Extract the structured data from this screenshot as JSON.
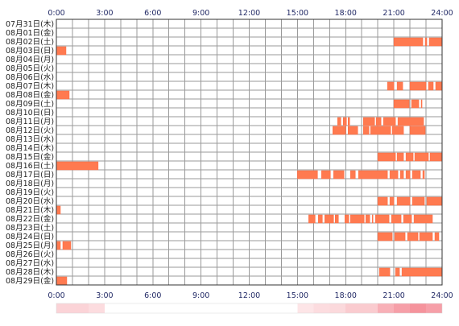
{
  "chart_data": {
    "type": "heatmap",
    "title": "",
    "xlabel": "",
    "ylabel": "",
    "x_unit": "hour of day",
    "xlim": [
      0,
      24
    ],
    "x_ticks": [
      "0:00",
      "3:00",
      "6:00",
      "9:00",
      "12:00",
      "15:00",
      "18:00",
      "21:00",
      "24:00"
    ],
    "grid": true,
    "bar_color": "#ff7a50",
    "bar_edge_color": "#ff6a40",
    "grid_color": "#9a9a9a",
    "frame_color": "#333333",
    "days": [
      {
        "label": "07月31日(木)",
        "intervals": []
      },
      {
        "label": "08月01日(金)",
        "intervals": []
      },
      {
        "label": "08月02日(土)",
        "intervals": [
          [
            21.0,
            22.8
          ],
          [
            22.95,
            23.05
          ],
          [
            23.2,
            24.0
          ]
        ]
      },
      {
        "label": "08月03日(日)",
        "intervals": [
          [
            0.0,
            0.6
          ]
        ]
      },
      {
        "label": "08月04日(月)",
        "intervals": []
      },
      {
        "label": "08月05日(火)",
        "intervals": []
      },
      {
        "label": "08月06日(水)",
        "intervals": []
      },
      {
        "label": "08月07日(木)",
        "intervals": [
          [
            20.6,
            21.0
          ],
          [
            21.2,
            21.55
          ],
          [
            22.0,
            23.0
          ],
          [
            23.15,
            23.45
          ],
          [
            23.6,
            24.0
          ]
        ]
      },
      {
        "label": "08月08日(金)",
        "intervals": [
          [
            0.0,
            0.8
          ]
        ]
      },
      {
        "label": "08月09日(土)",
        "intervals": [
          [
            21.0,
            21.95
          ],
          [
            22.1,
            22.55
          ],
          [
            22.7,
            22.75
          ]
        ]
      },
      {
        "label": "08月10日(日)",
        "intervals": []
      },
      {
        "label": "08月11日(月)",
        "intervals": [
          [
            17.5,
            17.7
          ],
          [
            17.85,
            18.05
          ],
          [
            18.15,
            18.25
          ],
          [
            19.1,
            19.8
          ],
          [
            19.9,
            20.2
          ],
          [
            20.35,
            21.1
          ],
          [
            21.25,
            22.85
          ]
        ]
      },
      {
        "label": "08月12日(火)",
        "intervals": [
          [
            17.2,
            18.0
          ],
          [
            18.15,
            18.75
          ],
          [
            19.1,
            19.45
          ],
          [
            19.55,
            20.8
          ],
          [
            20.9,
            21.6
          ],
          [
            22.0,
            22.95
          ]
        ]
      },
      {
        "label": "08月13日(水)",
        "intervals": []
      },
      {
        "label": "08月14日(木)",
        "intervals": []
      },
      {
        "label": "08月15日(金)",
        "intervals": [
          [
            20.0,
            21.1
          ],
          [
            21.2,
            21.6
          ],
          [
            21.75,
            22.2
          ],
          [
            22.3,
            23.15
          ],
          [
            23.25,
            24.0
          ]
        ]
      },
      {
        "label": "08月16日(土)",
        "intervals": [
          [
            0.0,
            2.6
          ]
        ]
      },
      {
        "label": "08月17日(日)",
        "intervals": [
          [
            15.0,
            16.25
          ],
          [
            16.5,
            17.05
          ],
          [
            17.25,
            17.9
          ],
          [
            18.3,
            18.6
          ],
          [
            18.8,
            20.6
          ],
          [
            20.75,
            21.25
          ],
          [
            21.4,
            21.6
          ],
          [
            21.75,
            22.0
          ],
          [
            22.15,
            22.65
          ],
          [
            22.8,
            22.9
          ]
        ]
      },
      {
        "label": "08月18日(月)",
        "intervals": []
      },
      {
        "label": "08月19日(火)",
        "intervals": []
      },
      {
        "label": "08月20日(水)",
        "intervals": [
          [
            20.0,
            20.6
          ],
          [
            20.75,
            21.0
          ],
          [
            21.2,
            22.0
          ],
          [
            22.15,
            22.9
          ],
          [
            23.05,
            24.0
          ]
        ]
      },
      {
        "label": "08月21日(木)",
        "intervals": [
          [
            0.0,
            0.25
          ]
        ]
      },
      {
        "label": "08月22日(金)",
        "intervals": [
          [
            15.7,
            16.1
          ],
          [
            16.3,
            16.55
          ],
          [
            16.7,
            17.25
          ],
          [
            17.35,
            17.55
          ],
          [
            17.95,
            18.2
          ],
          [
            18.3,
            19.15
          ],
          [
            19.25,
            19.5
          ],
          [
            19.65,
            19.7
          ],
          [
            19.85,
            20.7
          ],
          [
            20.85,
            21.45
          ],
          [
            21.6,
            22.1
          ],
          [
            22.25,
            23.4
          ]
        ]
      },
      {
        "label": "08月23日(土)",
        "intervals": []
      },
      {
        "label": "08月24日(日)",
        "intervals": [
          [
            20.0,
            20.9
          ],
          [
            21.05,
            21.7
          ],
          [
            21.85,
            22.5
          ],
          [
            22.6,
            23.4
          ],
          [
            23.55,
            23.8
          ]
        ]
      },
      {
        "label": "08月25日(月)",
        "intervals": [
          [
            0.0,
            0.25
          ],
          [
            0.4,
            0.9
          ]
        ]
      },
      {
        "label": "08月26日(火)",
        "intervals": []
      },
      {
        "label": "08月27日(水)",
        "intervals": []
      },
      {
        "label": "08月28日(木)",
        "intervals": [
          [
            20.1,
            20.75
          ],
          [
            21.1,
            21.35
          ],
          [
            21.5,
            24.0
          ]
        ]
      },
      {
        "label": "08月29日(金)",
        "intervals": [
          [
            0.0,
            0.65
          ]
        ]
      }
    ],
    "activity_strip": {
      "color_low": "#ffffff",
      "color_high": "#ef5060",
      "hour_intensity": [
        0.25,
        0.25,
        0.2,
        0.0,
        0.0,
        0.0,
        0.0,
        0.0,
        0.0,
        0.0,
        0.0,
        0.0,
        0.0,
        0.0,
        0.0,
        0.15,
        0.2,
        0.22,
        0.3,
        0.3,
        0.45,
        0.55,
        0.62,
        0.55
      ]
    }
  }
}
